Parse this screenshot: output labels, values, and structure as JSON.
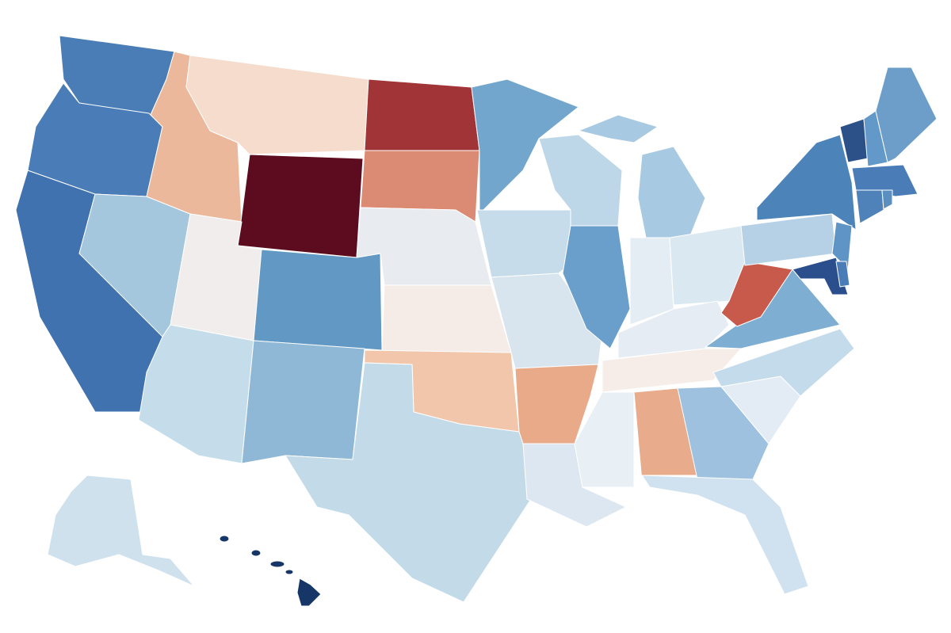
{
  "map": {
    "regions": [
      {
        "fill": "#4a7db5"
      },
      {
        "fill": "#4a7db7"
      },
      {
        "fill": "#3f72af"
      },
      {
        "fill": "#a5c7de"
      },
      {
        "fill": "#ecb89c"
      },
      {
        "fill": "#f5dccd"
      },
      {
        "fill": "#5d0c1f"
      },
      {
        "fill": "#f0edec"
      },
      {
        "fill": "#6299c4"
      },
      {
        "fill": "#c5dcea"
      },
      {
        "fill": "#8fb8d6"
      },
      {
        "fill": "#a13436"
      },
      {
        "fill": "#db8b73"
      },
      {
        "fill": "#e8ecf0"
      },
      {
        "fill": "#f5ece8"
      },
      {
        "fill": "#f1c6ab"
      },
      {
        "fill": "#c3dae9"
      },
      {
        "fill": "#72a6cd"
      },
      {
        "fill": "#c7dcea"
      },
      {
        "fill": "#d8e5ef"
      },
      {
        "fill": "#e8aa88"
      },
      {
        "fill": "#dde7f1"
      },
      {
        "fill": "#bed7e8"
      },
      {
        "fill": "#6a9fcb"
      },
      {
        "fill": "#a8c9e2"
      },
      {
        "fill": "#e5edf4"
      },
      {
        "fill": "#dae8f2"
      },
      {
        "fill": "#e5ecf3"
      },
      {
        "fill": "#f6ede8"
      },
      {
        "fill": "#e8f0f5"
      },
      {
        "fill": "#e8ab8b"
      },
      {
        "fill": "#9dc1de"
      },
      {
        "fill": "#d0e2ef"
      },
      {
        "fill": "#e3ecf5"
      },
      {
        "fill": "#c4dbeb"
      },
      {
        "fill": "#7faed3"
      },
      {
        "fill": "#c85a4b"
      },
      {
        "fill": "#b6d1e6"
      },
      {
        "fill": "#4c83b9"
      },
      {
        "fill": "#5e95c6"
      },
      {
        "fill": "#2b4f8d"
      },
      {
        "fill": "#2c5188"
      },
      {
        "fill": "#6299c8"
      },
      {
        "fill": "#6d9ec9"
      },
      {
        "fill": "#4f82b9"
      },
      {
        "fill": "#5a8fc0"
      },
      {
        "fill": "#d0e1ee"
      },
      {
        "fill": "#153667"
      }
    ]
  }
}
